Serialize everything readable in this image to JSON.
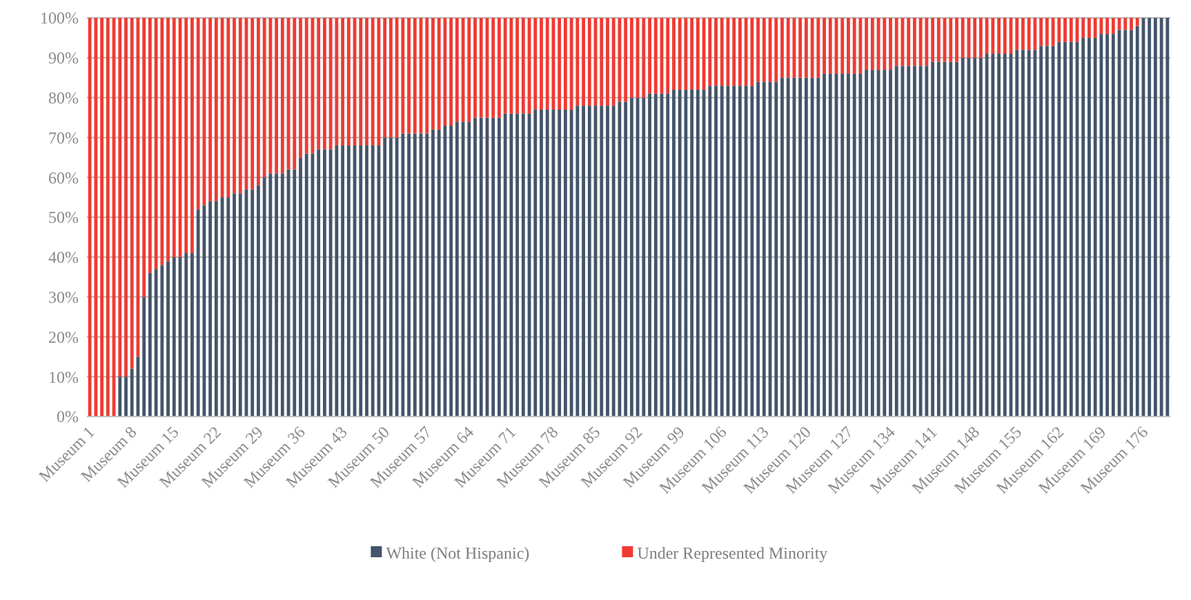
{
  "chart_data": {
    "type": "bar",
    "stacked": true,
    "grid": "y",
    "legend": "bottom",
    "categories": [
      "Museum 1",
      null,
      null,
      null,
      null,
      null,
      null,
      "Museum 8",
      null,
      null,
      null,
      null,
      null,
      null,
      "Museum 15",
      null,
      null,
      null,
      null,
      null,
      null,
      "Museum 22",
      null,
      null,
      null,
      null,
      null,
      null,
      "Museum 29",
      null,
      null,
      null,
      null,
      null,
      null,
      "Museum 36",
      null,
      null,
      null,
      null,
      null,
      null,
      "Museum 43",
      null,
      null,
      null,
      null,
      null,
      null,
      "Museum 50",
      null,
      null,
      null,
      null,
      null,
      null,
      "Museum 57",
      null,
      null,
      null,
      null,
      null,
      null,
      "Museum 64",
      null,
      null,
      null,
      null,
      null,
      null,
      "Museum 71",
      null,
      null,
      null,
      null,
      null,
      null,
      "Museum 78",
      null,
      null,
      null,
      null,
      null,
      null,
      "Museum 85",
      null,
      null,
      null,
      null,
      null,
      null,
      "Museum 92",
      null,
      null,
      null,
      null,
      null,
      null,
      "Museum 99",
      null,
      null,
      null,
      null,
      null,
      null,
      "Museum 106",
      null,
      null,
      null,
      null,
      null,
      null,
      "Museum 113",
      null,
      null,
      null,
      null,
      null,
      null,
      "Museum 120",
      null,
      null,
      null,
      null,
      null,
      null,
      "Museum 127",
      null,
      null,
      null,
      null,
      null,
      null,
      "Museum 134",
      null,
      null,
      null,
      null,
      null,
      null,
      "Museum 141",
      null,
      null,
      null,
      null,
      null,
      null,
      "Museum 148",
      null,
      null,
      null,
      null,
      null,
      null,
      "Museum 155",
      null,
      null,
      null,
      null,
      null,
      null,
      "Museum 162",
      null,
      null,
      null,
      null,
      null,
      null,
      "Museum 169",
      null,
      null,
      null,
      null,
      null,
      null,
      "Museum 176",
      null,
      null,
      null,
      null
    ],
    "ylim": [
      0,
      100
    ],
    "yticks": [
      {
        "value": 0,
        "label": "0%"
      },
      {
        "value": 10,
        "label": "10%"
      },
      {
        "value": 20,
        "label": "20%"
      },
      {
        "value": 30,
        "label": "30%"
      },
      {
        "value": 40,
        "label": "40%"
      },
      {
        "value": 50,
        "label": "50%"
      },
      {
        "value": 60,
        "label": "60%"
      },
      {
        "value": 70,
        "label": "70%"
      },
      {
        "value": 80,
        "label": "80%"
      },
      {
        "value": 90,
        "label": "90%"
      },
      {
        "value": 100,
        "label": "100%"
      }
    ],
    "series": [
      {
        "name": "White (Not Hispanic)",
        "color": "#44546a",
        "values": [
          0,
          0,
          0,
          0,
          0,
          10,
          10,
          12,
          15,
          30,
          36,
          37,
          38,
          39,
          40,
          40,
          41,
          41,
          52,
          53,
          54,
          54,
          55,
          55,
          56,
          56,
          57,
          57,
          58,
          60,
          61,
          61,
          61,
          62,
          62,
          65,
          66,
          66,
          67,
          67,
          67,
          68,
          68,
          68,
          68,
          68,
          68,
          68,
          68,
          70,
          70,
          70,
          71,
          71,
          71,
          71,
          71,
          72,
          72,
          73,
          73,
          74,
          74,
          74,
          75,
          75,
          75,
          75,
          75,
          76,
          76,
          76,
          76,
          76,
          77,
          77,
          77,
          77,
          77,
          77,
          77,
          78,
          78,
          78,
          78,
          78,
          78,
          78,
          79,
          79,
          80,
          80,
          80,
          81,
          81,
          81,
          81,
          82,
          82,
          82,
          82,
          82,
          82,
          83,
          83,
          83,
          83,
          83,
          83,
          83,
          83,
          84,
          84,
          84,
          84,
          85,
          85,
          85,
          85,
          85,
          85,
          85,
          86,
          86,
          86,
          86,
          86,
          86,
          86,
          87,
          87,
          87,
          87,
          87,
          88,
          88,
          88,
          88,
          88,
          88,
          89,
          89,
          89,
          89,
          89,
          90,
          90,
          90,
          90,
          91,
          91,
          91,
          91,
          91,
          92,
          92,
          92,
          92,
          93,
          93,
          93,
          94,
          94,
          94,
          94,
          95,
          95,
          95,
          96,
          96,
          96,
          97,
          97,
          97,
          98,
          100,
          100,
          100,
          100,
          100
        ]
      },
      {
        "name": "Under Represented Minority",
        "color": "#ee3b33",
        "values": [
          100,
          100,
          100,
          100,
          100,
          90,
          90,
          88,
          85,
          70,
          64,
          63,
          62,
          61,
          60,
          60,
          59,
          59,
          48,
          47,
          46,
          46,
          45,
          45,
          44,
          44,
          43,
          43,
          42,
          40,
          39,
          39,
          39,
          38,
          38,
          35,
          34,
          34,
          33,
          33,
          33,
          32,
          32,
          32,
          32,
          32,
          32,
          32,
          32,
          30,
          30,
          30,
          29,
          29,
          29,
          29,
          29,
          28,
          28,
          27,
          27,
          26,
          26,
          26,
          25,
          25,
          25,
          25,
          25,
          24,
          24,
          24,
          24,
          24,
          23,
          23,
          23,
          23,
          23,
          23,
          23,
          22,
          22,
          22,
          22,
          22,
          22,
          22,
          21,
          21,
          20,
          20,
          20,
          19,
          19,
          19,
          19,
          18,
          18,
          18,
          18,
          18,
          18,
          17,
          17,
          17,
          17,
          17,
          17,
          17,
          17,
          16,
          16,
          16,
          16,
          15,
          15,
          15,
          15,
          15,
          15,
          15,
          14,
          14,
          14,
          14,
          14,
          14,
          14,
          13,
          13,
          13,
          13,
          13,
          12,
          12,
          12,
          12,
          12,
          12,
          11,
          11,
          11,
          11,
          11,
          10,
          10,
          10,
          10,
          9,
          9,
          9,
          9,
          9,
          8,
          8,
          8,
          8,
          7,
          7,
          7,
          6,
          6,
          6,
          6,
          5,
          5,
          5,
          4,
          4,
          4,
          3,
          3,
          3,
          2,
          0,
          0,
          0,
          0,
          0
        ]
      }
    ]
  }
}
